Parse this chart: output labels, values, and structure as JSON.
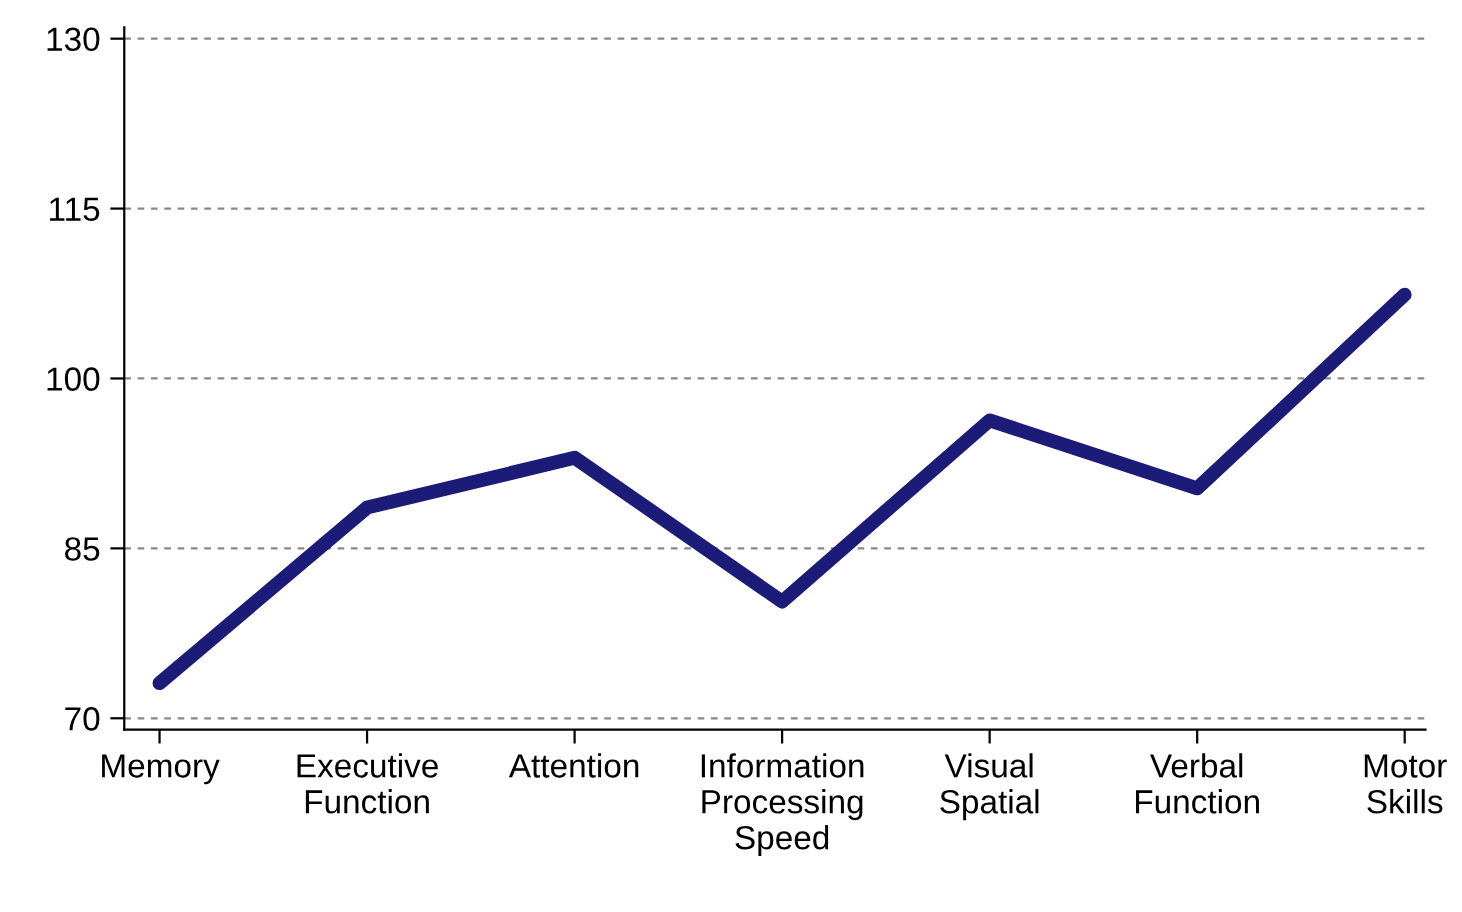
{
  "chart_data": {
    "type": "line",
    "categories": [
      "Memory",
      "Executive\nFunction",
      "Attention",
      "Information\nProcessing\nSpeed",
      "Visual\nSpatial",
      "Verbal\nFunction",
      "Motor\nSkills"
    ],
    "series": [
      {
        "color": "#1c1c78",
        "values": [
          73.1,
          88.6,
          93.0,
          80.3,
          96.3,
          90.3,
          107.4
        ]
      }
    ],
    "ylim": [
      69,
      131
    ],
    "yticks": [
      70,
      85,
      100,
      115,
      130
    ],
    "grid": "y",
    "marker": "none",
    "line_style": "solid",
    "legend": false
  }
}
